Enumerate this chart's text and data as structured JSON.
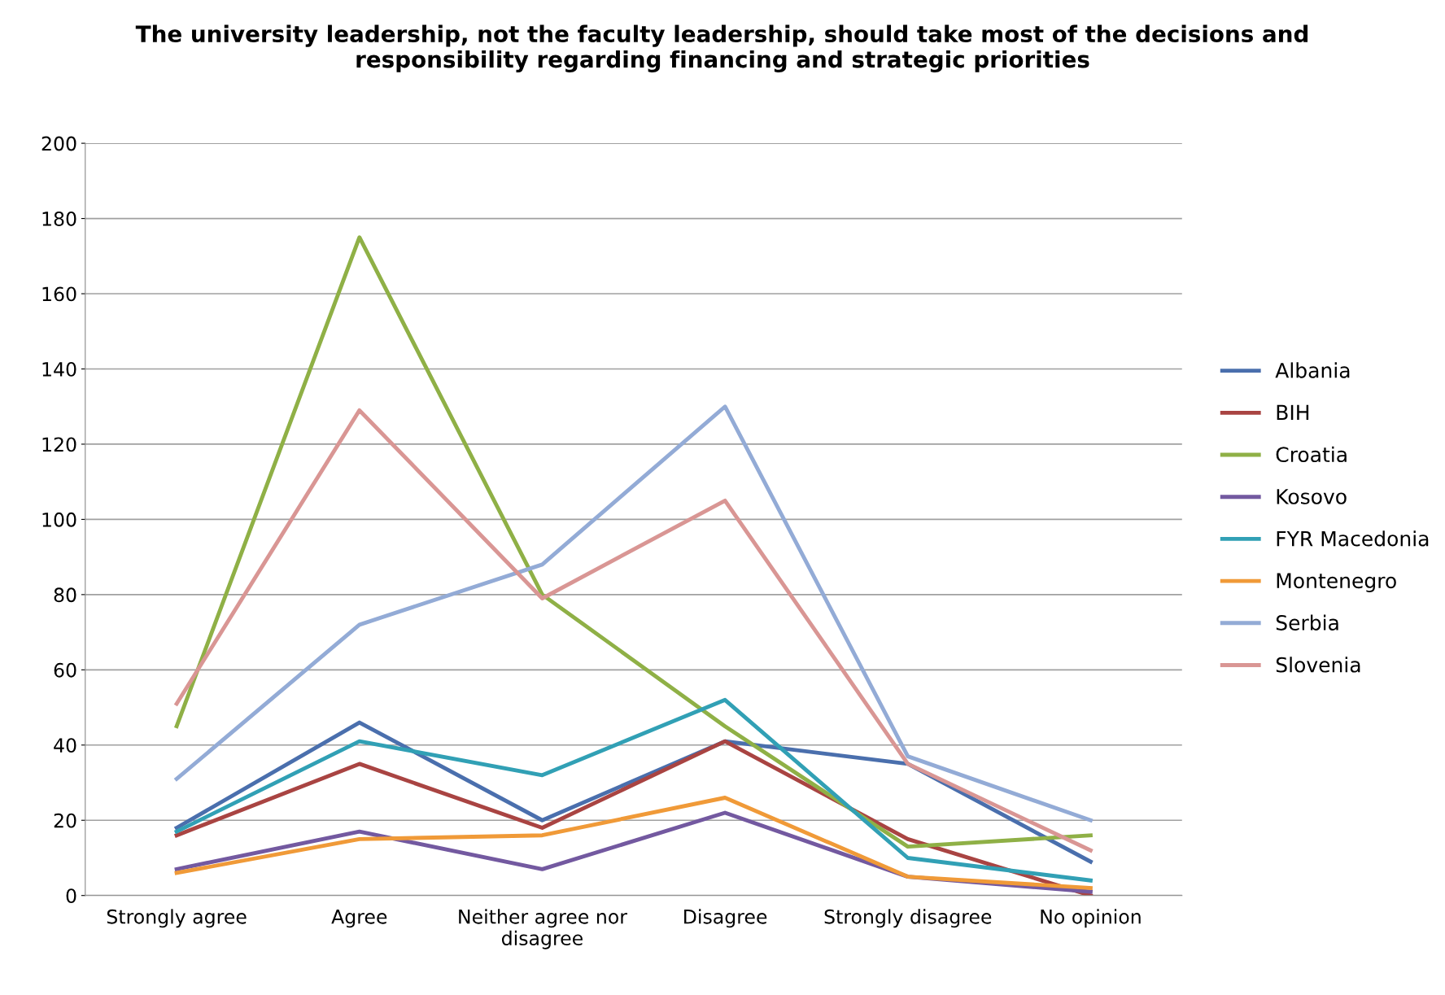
{
  "chart_data": {
    "type": "line",
    "title": "The university leadership, not the faculty leadership, should take most of the decisions and\nresponsibility regarding financing and strategic priorities",
    "categories": [
      "Strongly agree",
      "Agree",
      "Neither agree nor\ndisagree",
      "Disagree",
      "Strongly disagree",
      "No opinion"
    ],
    "series": [
      {
        "name": "Albania",
        "color": "#4a6fad",
        "values": [
          18,
          46,
          20,
          41,
          35,
          9
        ]
      },
      {
        "name": "BIH",
        "color": "#a94442",
        "values": [
          16,
          35,
          18,
          41,
          15,
          0
        ]
      },
      {
        "name": "Croatia",
        "color": "#8fb046",
        "values": [
          45,
          175,
          80,
          45,
          13,
          16
        ]
      },
      {
        "name": "Kosovo",
        "color": "#7359a0",
        "values": [
          7,
          17,
          7,
          22,
          5,
          1
        ]
      },
      {
        "name": "FYR Macedonia",
        "color": "#31a0b5",
        "values": [
          17,
          41,
          32,
          52,
          10,
          4
        ]
      },
      {
        "name": "Montenegro",
        "color": "#f09a38",
        "values": [
          6,
          15,
          16,
          26,
          5,
          2
        ]
      },
      {
        "name": "Serbia",
        "color": "#93abd6",
        "values": [
          31,
          72,
          88,
          130,
          37,
          20
        ]
      },
      {
        "name": "Slovenia",
        "color": "#d99694",
        "values": [
          51,
          129,
          79,
          105,
          35,
          12
        ]
      }
    ],
    "ylim": [
      0,
      200
    ],
    "yticks": [
      0,
      20,
      40,
      60,
      80,
      100,
      120,
      140,
      160,
      180,
      200
    ],
    "grid": "y",
    "legend": "right",
    "marker": "none",
    "line_style": "solid"
  }
}
